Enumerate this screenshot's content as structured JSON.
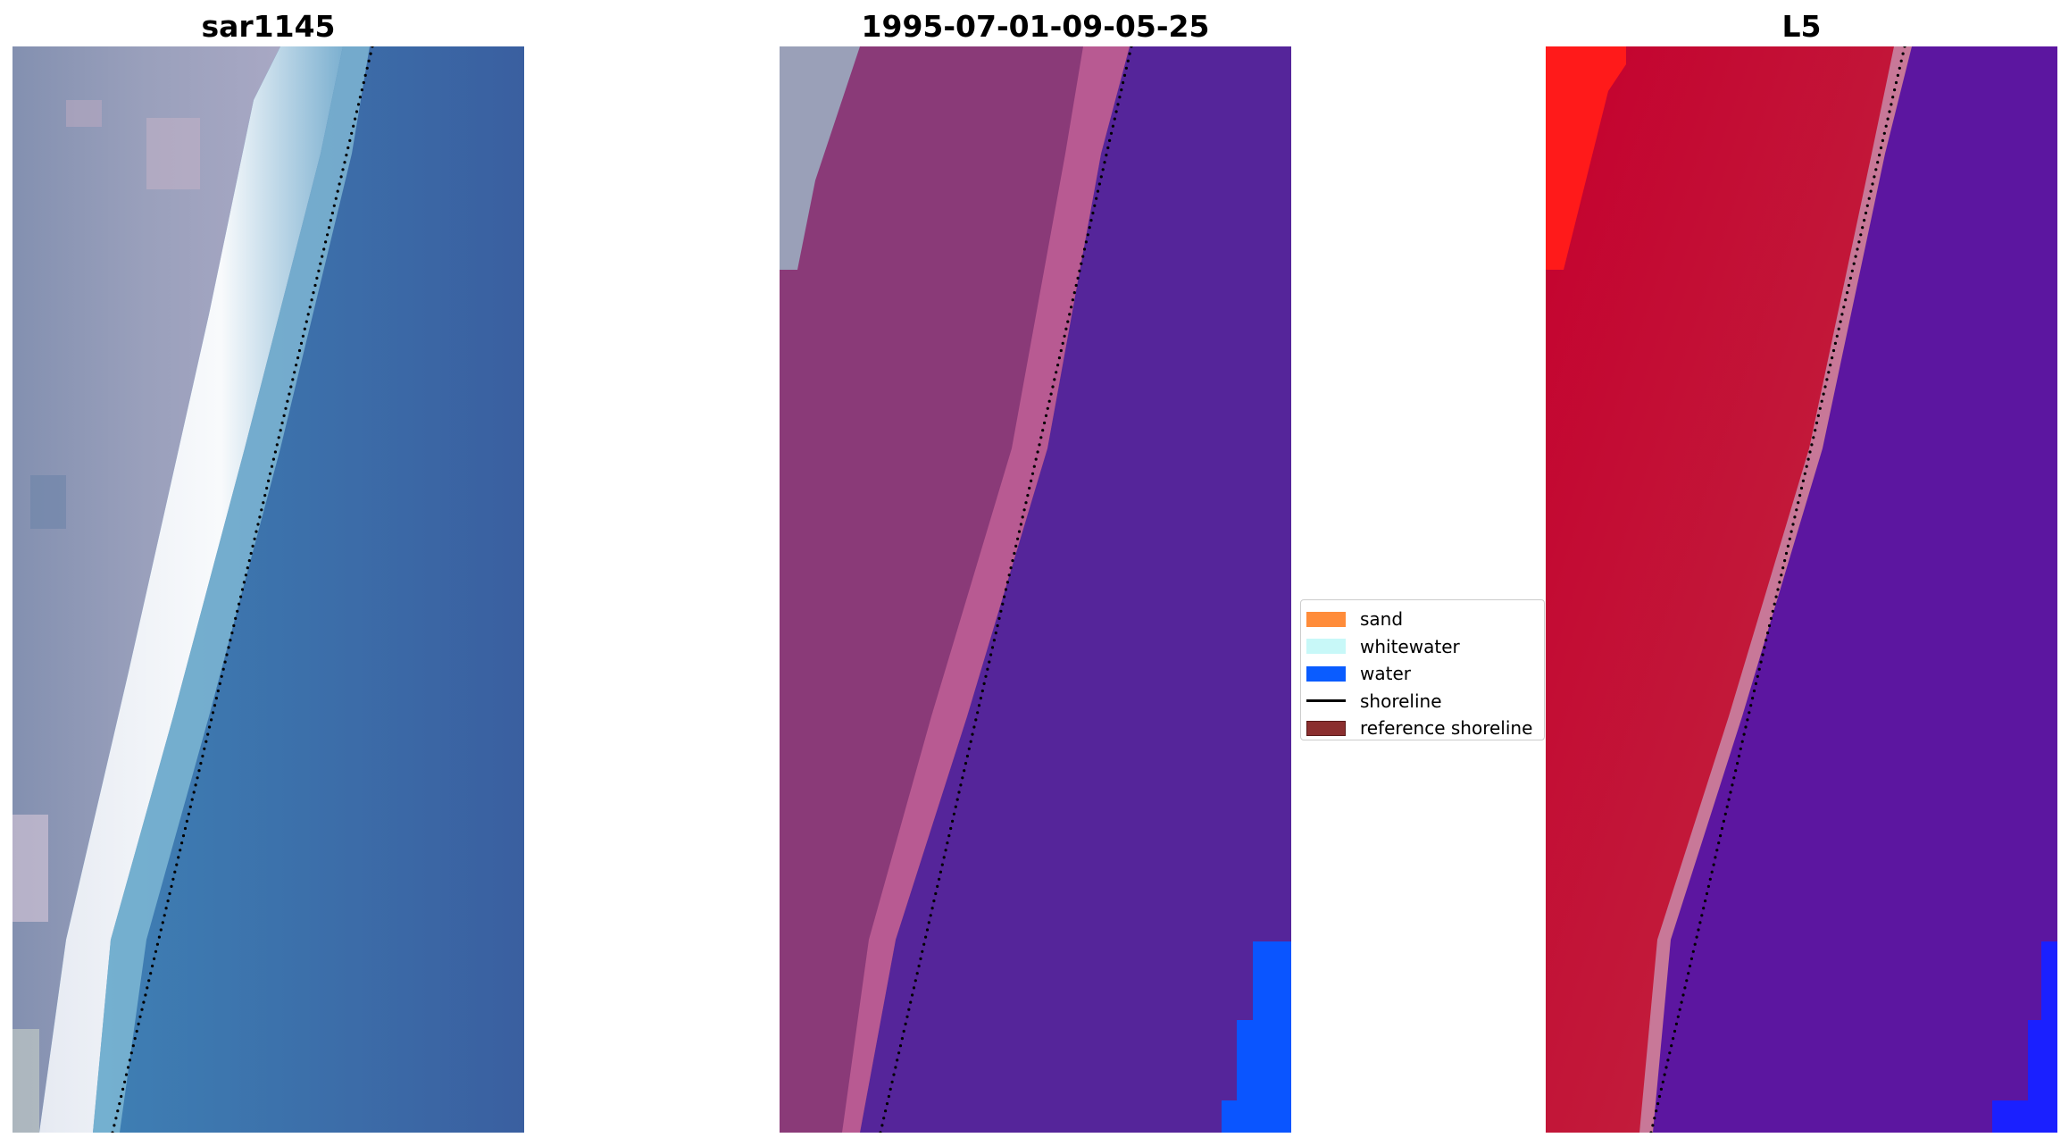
{
  "panels": [
    {
      "title": "sar1145"
    },
    {
      "title": "1995-07-01-09-05-25"
    },
    {
      "title": "L5"
    }
  ],
  "legend": {
    "items": [
      {
        "label": "sand",
        "color": "#ff8c3a",
        "kind": "patch"
      },
      {
        "label": "whitewater",
        "color": "#c8f8f8",
        "kind": "patch"
      },
      {
        "label": "water",
        "color": "#0a5cff",
        "kind": "patch"
      },
      {
        "label": "shoreline",
        "color": "#000000",
        "kind": "line"
      },
      {
        "label": "reference shoreline",
        "color": "#8b2f2f",
        "kind": "patch"
      }
    ]
  },
  "colors": {
    "rgb_land": "#8f97b0",
    "rgb_whitewater": "#f2f4f8",
    "rgb_water": "#3d7bb5",
    "class_land": "#8a3a78",
    "class_beach": "#b85a92",
    "class_water": "#55259a",
    "class_bright_water": "#0a55ff",
    "mndwi_land": "#c21a3a",
    "mndwi_water": "#5c16a0",
    "mndwi_bright": "#1a20ff"
  }
}
